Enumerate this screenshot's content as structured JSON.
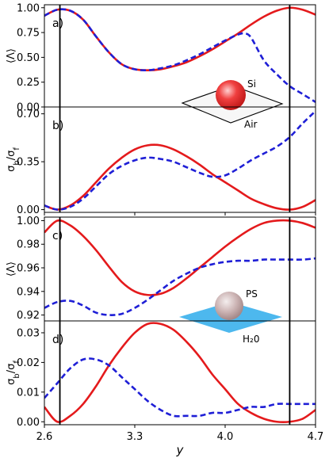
{
  "chart_data": [
    {
      "type": "line",
      "panel": "a)",
      "ylabel": "⟨Λ⟩",
      "ylim": [
        0.0,
        1.03
      ],
      "yticks": [
        "1.00",
        "0.75",
        "0.50",
        "0.25",
        "0.00"
      ],
      "ytick_values": [
        1.0,
        0.75,
        0.5,
        0.25,
        0.0
      ],
      "xlim": [
        2.6,
        4.7
      ],
      "inset": {
        "particle": "Si",
        "medium": "Air"
      },
      "series": [
        {
          "color": "#e41a1c",
          "style": "solid",
          "x": [
            2.6,
            2.7,
            2.8,
            2.9,
            3.0,
            3.1,
            3.2,
            3.3,
            3.4,
            3.5,
            3.6,
            3.7,
            3.8,
            3.9,
            4.0,
            4.1,
            4.2,
            4.3,
            4.4,
            4.5,
            4.6,
            4.7
          ],
          "y": [
            0.92,
            0.98,
            0.97,
            0.88,
            0.71,
            0.55,
            0.43,
            0.38,
            0.37,
            0.38,
            0.41,
            0.45,
            0.51,
            0.58,
            0.66,
            0.74,
            0.83,
            0.91,
            0.97,
            1.0,
            0.98,
            0.93
          ]
        },
        {
          "color": "#1f1fd6",
          "style": "dashed",
          "x": [
            2.6,
            2.7,
            2.8,
            2.9,
            3.0,
            3.1,
            3.2,
            3.3,
            3.4,
            3.5,
            3.6,
            3.7,
            3.8,
            3.9,
            4.0,
            4.1,
            4.15,
            4.2,
            4.3,
            4.4,
            4.5,
            4.6,
            4.7
          ],
          "y": [
            0.92,
            0.98,
            0.97,
            0.88,
            0.71,
            0.55,
            0.43,
            0.38,
            0.37,
            0.39,
            0.42,
            0.47,
            0.53,
            0.6,
            0.67,
            0.73,
            0.74,
            0.7,
            0.47,
            0.33,
            0.21,
            0.13,
            0.05
          ]
        }
      ]
    },
    {
      "type": "line",
      "panel": "b)",
      "ylabel": "σ_b/σ_f",
      "ylim": [
        -0.02,
        0.75
      ],
      "yticks": [
        "0.70",
        "0.35",
        "0.00"
      ],
      "ytick_values": [
        0.7,
        0.35,
        0.0
      ],
      "xlim": [
        2.6,
        4.7
      ],
      "series": [
        {
          "color": "#e41a1c",
          "style": "solid",
          "x": [
            2.6,
            2.7,
            2.8,
            2.9,
            3.0,
            3.1,
            3.2,
            3.3,
            3.4,
            3.5,
            3.6,
            3.7,
            3.8,
            3.9,
            4.0,
            4.1,
            4.2,
            4.3,
            4.4,
            4.5,
            4.6,
            4.7
          ],
          "y": [
            0.03,
            0.0,
            0.03,
            0.1,
            0.2,
            0.3,
            0.38,
            0.44,
            0.47,
            0.47,
            0.44,
            0.39,
            0.33,
            0.26,
            0.2,
            0.14,
            0.08,
            0.04,
            0.01,
            0.0,
            0.02,
            0.07
          ]
        },
        {
          "color": "#1f1fd6",
          "style": "dashed",
          "x": [
            2.6,
            2.7,
            2.8,
            2.9,
            3.0,
            3.1,
            3.2,
            3.3,
            3.4,
            3.5,
            3.6,
            3.7,
            3.8,
            3.9,
            4.0,
            4.1,
            4.2,
            4.3,
            4.4,
            4.5,
            4.6,
            4.7
          ],
          "y": [
            0.03,
            0.0,
            0.02,
            0.08,
            0.17,
            0.26,
            0.32,
            0.36,
            0.38,
            0.37,
            0.35,
            0.31,
            0.27,
            0.24,
            0.25,
            0.3,
            0.36,
            0.41,
            0.46,
            0.53,
            0.63,
            0.72
          ]
        }
      ]
    },
    {
      "type": "line",
      "panel": "c)",
      "ylabel": "⟨Λ⟩",
      "ylim": [
        0.915,
        1.003
      ],
      "yticks": [
        "1.00",
        "0.98",
        "0.96",
        "0.94",
        "0.92"
      ],
      "ytick_values": [
        1.0,
        0.98,
        0.96,
        0.94,
        0.92
      ],
      "xlim": [
        2.6,
        4.7
      ],
      "inset": {
        "particle": "PS",
        "medium": "H$_2$0"
      },
      "series": [
        {
          "color": "#e41a1c",
          "style": "solid",
          "x": [
            2.6,
            2.7,
            2.8,
            2.9,
            3.0,
            3.1,
            3.2,
            3.3,
            3.4,
            3.5,
            3.6,
            3.7,
            3.8,
            3.9,
            4.0,
            4.1,
            4.2,
            4.3,
            4.4,
            4.5,
            4.6,
            4.7
          ],
          "y": [
            0.99,
            1.0,
            0.996,
            0.987,
            0.975,
            0.961,
            0.948,
            0.94,
            0.937,
            0.938,
            0.943,
            0.951,
            0.96,
            0.969,
            0.978,
            0.986,
            0.993,
            0.998,
            1.0,
            1.0,
            0.998,
            0.994
          ]
        },
        {
          "color": "#1f1fd6",
          "style": "dashed",
          "x": [
            2.6,
            2.7,
            2.8,
            2.9,
            3.0,
            3.1,
            3.2,
            3.3,
            3.4,
            3.5,
            3.6,
            3.7,
            3.8,
            3.9,
            4.0,
            4.1,
            4.2,
            4.3,
            4.4,
            4.5,
            4.6,
            4.7
          ],
          "y": [
            0.926,
            0.931,
            0.932,
            0.928,
            0.922,
            0.92,
            0.921,
            0.926,
            0.933,
            0.941,
            0.949,
            0.955,
            0.96,
            0.963,
            0.965,
            0.966,
            0.966,
            0.967,
            0.967,
            0.967,
            0.967,
            0.968
          ]
        }
      ]
    },
    {
      "type": "line",
      "panel": "d)",
      "ylabel": "σ_b/σ_f",
      "ylim": [
        -0.001,
        0.034
      ],
      "yticks": [
        "0.03",
        "0.02",
        "0.01",
        "0.00"
      ],
      "ytick_values": [
        0.03,
        0.02,
        0.01,
        0.0
      ],
      "xlim": [
        2.6,
        4.7
      ],
      "xlabel": "y",
      "xticks": [
        "2.6",
        "3.3",
        "4.0",
        "4.7"
      ],
      "xtick_values": [
        2.6,
        3.3,
        4.0,
        4.7
      ],
      "series": [
        {
          "color": "#e41a1c",
          "style": "solid",
          "x": [
            2.6,
            2.7,
            2.8,
            2.9,
            3.0,
            3.1,
            3.2,
            3.3,
            3.4,
            3.5,
            3.6,
            3.7,
            3.8,
            3.9,
            4.0,
            4.1,
            4.2,
            4.3,
            4.4,
            4.5,
            4.6,
            4.7
          ],
          "y": [
            0.005,
            0.0,
            0.002,
            0.006,
            0.012,
            0.019,
            0.025,
            0.03,
            0.033,
            0.033,
            0.031,
            0.027,
            0.022,
            0.016,
            0.011,
            0.006,
            0.003,
            0.001,
            0.0,
            0.0,
            0.001,
            0.004
          ]
        },
        {
          "color": "#1f1fd6",
          "style": "dashed",
          "x": [
            2.6,
            2.7,
            2.8,
            2.9,
            3.0,
            3.1,
            3.2,
            3.3,
            3.4,
            3.5,
            3.6,
            3.7,
            3.8,
            3.9,
            4.0,
            4.1,
            4.2,
            4.3,
            4.4,
            4.5,
            4.6,
            4.7
          ],
          "y": [
            0.008,
            0.013,
            0.018,
            0.021,
            0.021,
            0.019,
            0.015,
            0.011,
            0.007,
            0.004,
            0.002,
            0.002,
            0.002,
            0.003,
            0.003,
            0.004,
            0.005,
            0.005,
            0.006,
            0.006,
            0.006,
            0.006
          ]
        }
      ]
    }
  ],
  "vertical_markers": [
    2.72,
    4.5
  ]
}
